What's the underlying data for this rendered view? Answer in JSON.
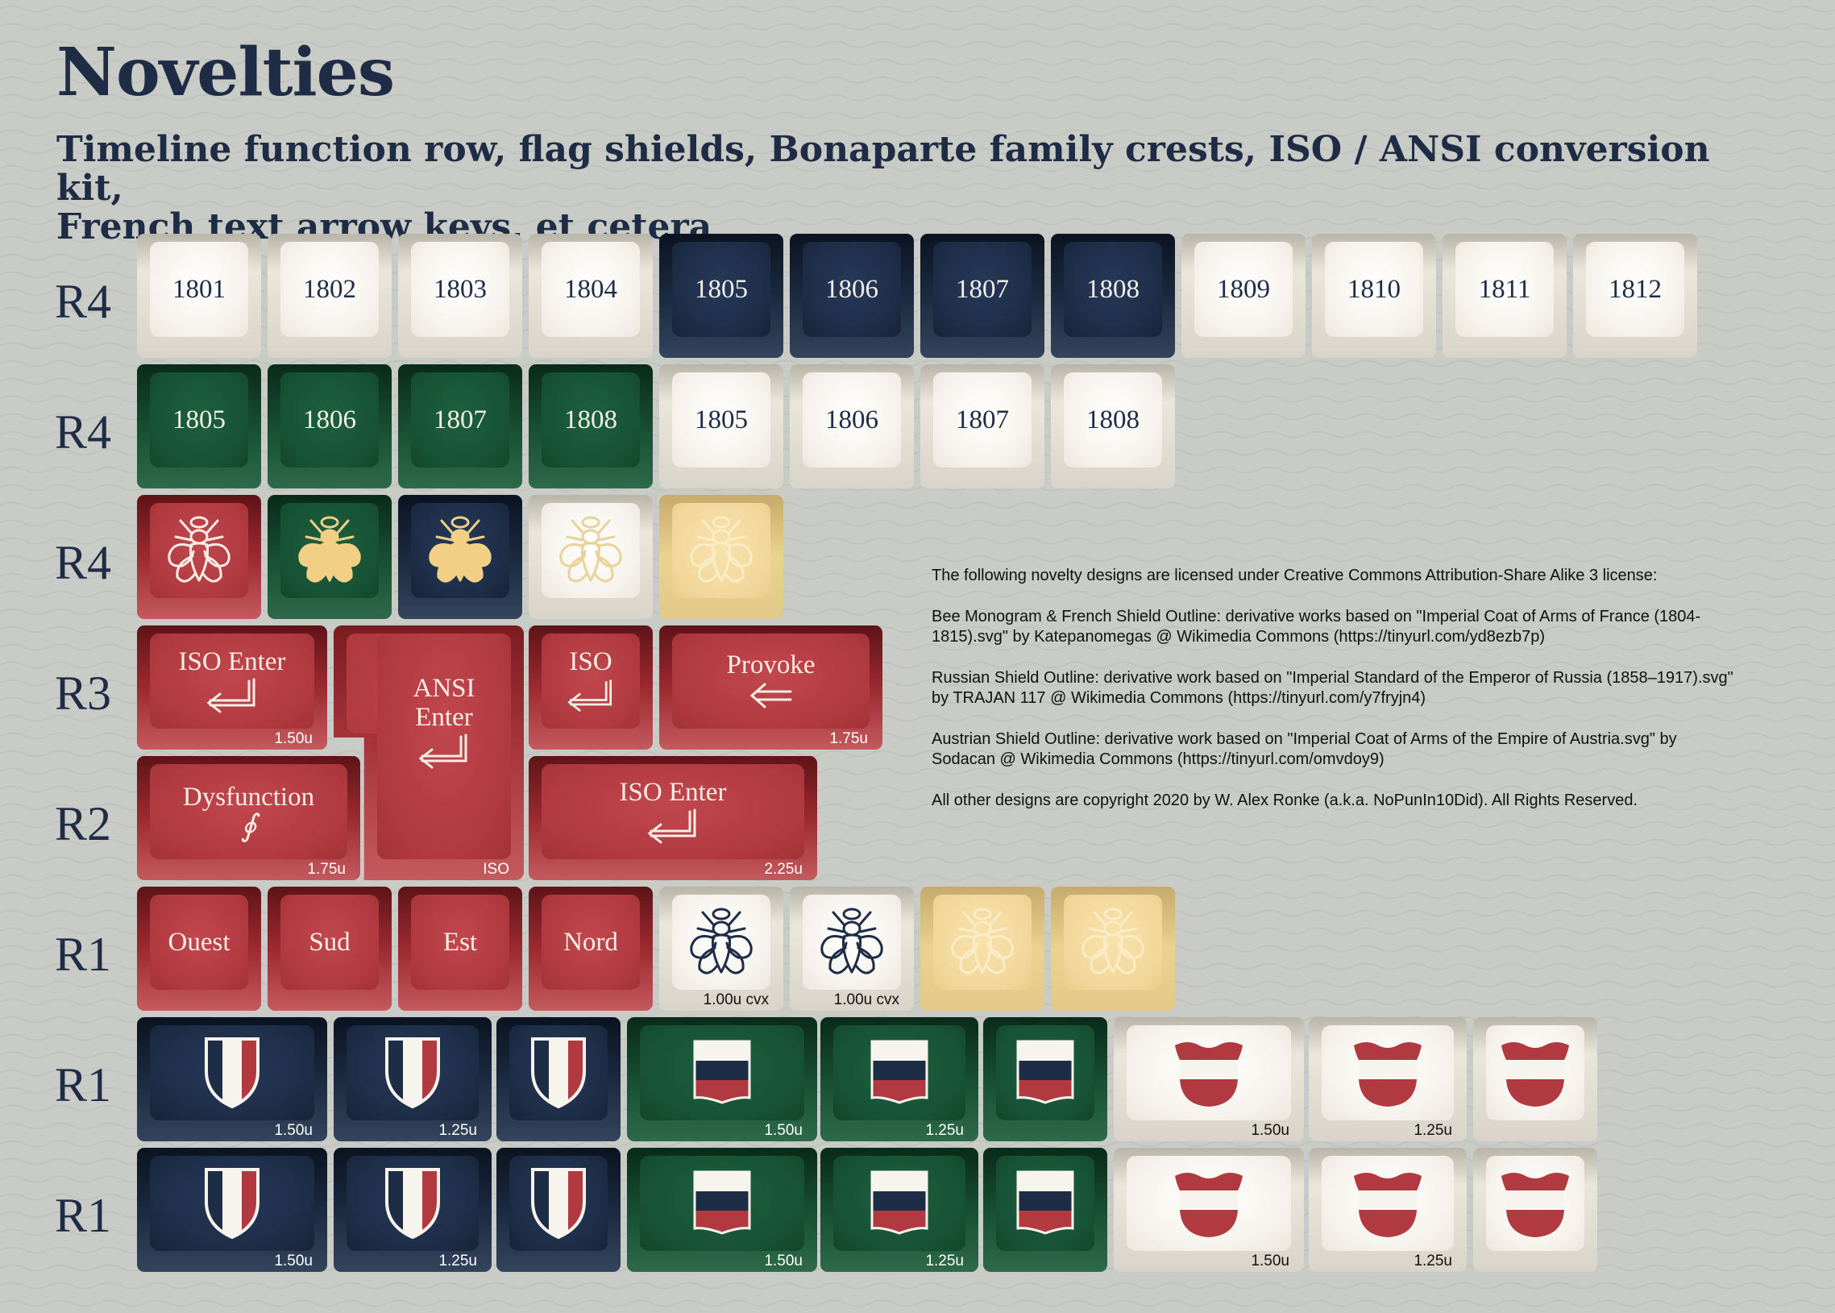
{
  "header": {
    "title": "Novelties",
    "subtitle_line1": "Timeline function row, flag shields, Bonaparte family crests, ISO / ANSI conversion kit,",
    "subtitle_line2": "French text arrow keys, et cetera"
  },
  "row_labels": [
    "R4",
    "R4",
    "R4",
    "R3",
    "R2",
    "R1",
    "R1",
    "R1"
  ],
  "rows": {
    "r1_years": [
      "1801",
      "1802",
      "1803",
      "1804",
      "1805",
      "1806",
      "1807",
      "1808",
      "1809",
      "1810",
      "1811",
      "1812"
    ],
    "r2_years": [
      "1805",
      "1806",
      "1807",
      "1808",
      "1805",
      "1806",
      "1807",
      "1808"
    ],
    "iso_enter": {
      "label": "ISO Enter",
      "size": "1.50u"
    },
    "ansi_enter": {
      "label_line1": "ANSI",
      "label_line2": "Enter",
      "size": "ISO"
    },
    "iso_small": {
      "label": "ISO"
    },
    "provoke": {
      "label": "Provoke",
      "size": "1.75u"
    },
    "dysfunction": {
      "label": "Dysfunction",
      "glyph": "∮",
      "size": "1.75u"
    },
    "iso_enter_wide": {
      "label": "ISO Enter",
      "size": "2.25u"
    },
    "arrows": [
      "Ouest",
      "Sud",
      "Est",
      "Nord"
    ],
    "cvx_size": "1.00u cvx",
    "shield_sizes": {
      "s150": "1.50u",
      "s125": "1.25u"
    }
  },
  "license_notes": [
    "The following novelty designs are licensed under Creative Commons Attribution-Share Alike 3 license:",
    "Bee Monogram & French Shield Outline: derivative works based on \"Imperial Coat of Arms of France (1804-1815).svg\" by Katepanomegas @ Wikimedia Commons (https://tinyurl.com/yd8ezb7p)",
    "Russian Shield Outline: derivative work based on \"Imperial Standard of the Emperor of Russia (1858–1917).svg\" by TRAJAN 117 @ Wikimedia Commons (https://tinyurl.com/y7fryjn4)",
    "Austrian Shield Outline: derivative work based on \"Imperial Coat of Arms of the Empire of Austria.svg\" by Sodacan @ Wikimedia Commons (https://tinyurl.com/omvdoy9)",
    "All other designs are copyright 2020 by W. Alex Ronke (a.k.a. NoPunIn10Did). All Rights Reserved."
  ],
  "colors": {
    "navy": "#1d2d46",
    "green": "#175235",
    "red": "#b03a40",
    "cream": "#f7f4ee",
    "gold": "#f1d79b",
    "ink": "#1e2d45"
  }
}
